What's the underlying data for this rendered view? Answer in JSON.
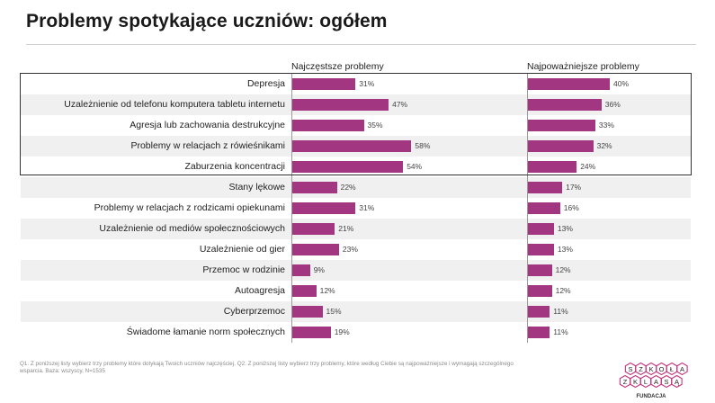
{
  "title": "Problemy spotykające uczniów: ogółem",
  "footnote": "Q1. Z poniższej listy wybierz trzy problemy które dotykają Twoich uczniów najczęściej.  Q2. Z poniższej listy wybierz trzy problemy, które według Ciebie są najpoważniejsze i wymagają szczególnego wsparcia. Baza: wszyscy, N=1535",
  "logo": {
    "top_letters": [
      "S",
      "Z",
      "K",
      "O",
      "Ł",
      "A"
    ],
    "middle_letters": [
      "Z",
      "K",
      "L",
      "A",
      "S",
      "Ą"
    ],
    "caption": "FUNDACJA"
  },
  "colors": {
    "bar": "#a33680",
    "band": "#f0f0f0",
    "logo_hex": "#c2367f"
  },
  "chart_data": [
    {
      "type": "bar",
      "orientation": "horizontal",
      "title": "Najczęstsze problemy",
      "value_unit": "%",
      "xlim": [
        0,
        100
      ],
      "categories": [
        "Depresja",
        "Uzależnienie od telefonu komputera tabletu internetu",
        "Agresja lub zachowania destrukcyjne",
        "Problemy w relacjach z rówieśnikami",
        "Zaburzenia koncentracji",
        "Stany lękowe",
        "Problemy w relacjach z rodzicami opiekunami",
        "Uzależnienie od mediów społecznościowych",
        "Uzależnienie od gier",
        "Przemoc w rodzinie",
        "Autoagresja",
        "Cyberprzemoc",
        "Świadome łamanie norm społecznych"
      ],
      "values": [
        31,
        47,
        35,
        58,
        54,
        22,
        31,
        21,
        23,
        9,
        12,
        15,
        19
      ],
      "labels": [
        "31%",
        "47%",
        "35%",
        "58%",
        "54%",
        "22%",
        "31%",
        "21%",
        "23%",
        "9%",
        "12%",
        "15%",
        "19%"
      ]
    },
    {
      "type": "bar",
      "orientation": "horizontal",
      "title": "Najpoważniejsze problemy",
      "value_unit": "%",
      "xlim": [
        0,
        100
      ],
      "categories": [
        "Depresja",
        "Uzależnienie od telefonu komputera tabletu internetu",
        "Agresja lub zachowania destrukcyjne",
        "Problemy w relacjach z rówieśnikami",
        "Zaburzenia koncentracji",
        "Stany lękowe",
        "Problemy w relacjach z rodzicami opiekunami",
        "Uzależnienie od mediów społecznościowych",
        "Uzależnienie od gier",
        "Przemoc w rodzinie",
        "Autoagresja",
        "Cyberprzemoc",
        "Świadome łamanie norm społecznych"
      ],
      "values": [
        40,
        36,
        33,
        32,
        24,
        17,
        16,
        13,
        13,
        12,
        12,
        11,
        11
      ],
      "labels": [
        "40%",
        "36%",
        "33%",
        "32%",
        "24%",
        "17%",
        "16%",
        "13%",
        "13%",
        "12%",
        "12%",
        "11%",
        "11%"
      ]
    }
  ]
}
